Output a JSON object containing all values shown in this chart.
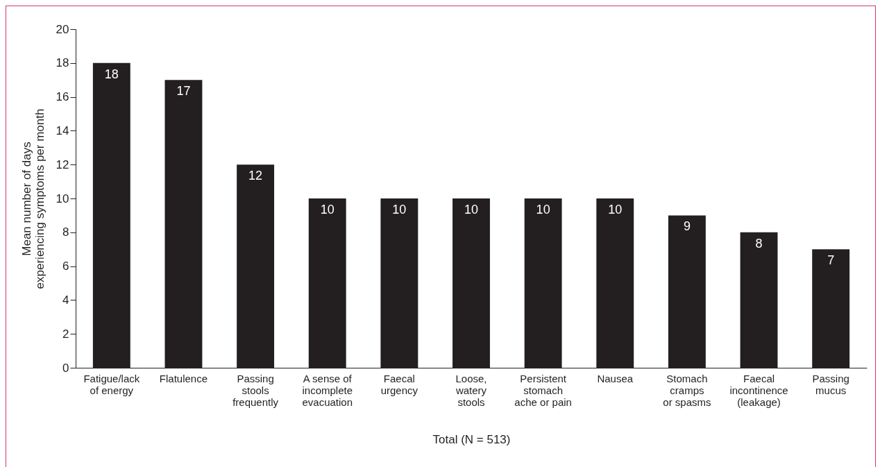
{
  "chart_data": {
    "type": "bar",
    "categories": [
      "Fatigue/lack\nof energy",
      "Flatulence",
      "Passing\nstools\nfrequently",
      "A sense of\nincomplete\nevacuation",
      "Faecal\nurgency",
      "Loose,\nwatery\nstools",
      "Persistent\nstomach\nache or pain",
      "Nausea",
      "Stomach\ncramps\nor spasms",
      "Faecal\nincontinence\n(leakage)",
      "Passing\nmucus"
    ],
    "values": [
      18,
      17,
      12,
      10,
      10,
      10,
      10,
      10,
      9,
      8,
      7
    ],
    "color": "#231f20",
    "xlabel": "Total (N = 513)",
    "ylabel": "Mean number of days\nexperiencing symptoms per month",
    "ylim": [
      0,
      20
    ],
    "yticks": [
      0,
      2,
      4,
      6,
      8,
      10,
      12,
      14,
      16,
      18,
      20
    ],
    "data_labels": true,
    "grid": false
  }
}
